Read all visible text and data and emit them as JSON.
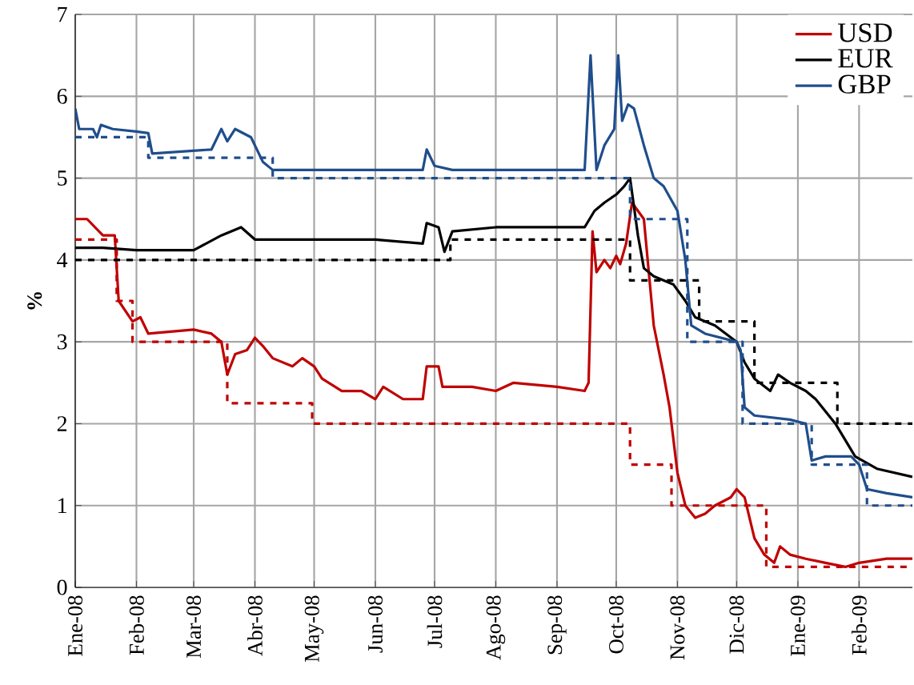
{
  "chart_data": {
    "type": "line",
    "ylabel": "%",
    "ylim": [
      0,
      7
    ],
    "yticks": [
      0,
      1,
      2,
      3,
      4,
      5,
      6,
      7
    ],
    "xlim": [
      "2008-01-01",
      "2009-02-28"
    ],
    "xticks": [
      {
        "value": "2008-01-01",
        "label": "Ene-08"
      },
      {
        "value": "2008-02-01",
        "label": "Feb-08"
      },
      {
        "value": "2008-03-01",
        "label": "Mar-08"
      },
      {
        "value": "2008-04-01",
        "label": "Abr-08"
      },
      {
        "value": "2008-05-01",
        "label": "May-08"
      },
      {
        "value": "2008-06-01",
        "label": "Jun-08"
      },
      {
        "value": "2008-07-01",
        "label": "Jul-08"
      },
      {
        "value": "2008-08-01",
        "label": "Ago-08"
      },
      {
        "value": "2008-09-01",
        "label": "Sep-08"
      },
      {
        "value": "2008-10-01",
        "label": "Oct-08"
      },
      {
        "value": "2008-11-01",
        "label": "Nov-08"
      },
      {
        "value": "2008-12-01",
        "label": "Dic-08"
      },
      {
        "value": "2009-01-01",
        "label": "Ene-09"
      },
      {
        "value": "2009-02-01",
        "label": "Feb-09"
      }
    ],
    "grid": true,
    "legend": "top right",
    "series": [
      {
        "name": "USD",
        "color": "#c00000",
        "line_style": "solid",
        "x": [
          "2008-01-01",
          "2008-01-07",
          "2008-01-15",
          "2008-01-21",
          "2008-01-23",
          "2008-01-30",
          "2008-02-03",
          "2008-02-07",
          "2008-03-01",
          "2008-03-10",
          "2008-03-15",
          "2008-03-18",
          "2008-03-22",
          "2008-03-28",
          "2008-04-01",
          "2008-04-05",
          "2008-04-10",
          "2008-04-20",
          "2008-04-25",
          "2008-05-01",
          "2008-05-05",
          "2008-05-15",
          "2008-05-25",
          "2008-06-01",
          "2008-06-05",
          "2008-06-15",
          "2008-06-25",
          "2008-06-27",
          "2008-07-03",
          "2008-07-05",
          "2008-07-20",
          "2008-08-01",
          "2008-08-10",
          "2008-09-01",
          "2008-09-15",
          "2008-09-17",
          "2008-09-19",
          "2008-09-21",
          "2008-09-25",
          "2008-09-28",
          "2008-10-01",
          "2008-10-03",
          "2008-10-06",
          "2008-10-09",
          "2008-10-12",
          "2008-10-15",
          "2008-10-20",
          "2008-10-25",
          "2008-10-28",
          "2008-11-01",
          "2008-11-05",
          "2008-11-10",
          "2008-11-15",
          "2008-11-20",
          "2008-11-28",
          "2008-12-01",
          "2008-12-05",
          "2008-12-10",
          "2008-12-15",
          "2008-12-20",
          "2008-12-23",
          "2008-12-28",
          "2009-01-05",
          "2009-01-15",
          "2009-01-25",
          "2009-02-01",
          "2009-02-15",
          "2009-02-28"
        ],
        "values": [
          4.5,
          4.5,
          4.3,
          4.3,
          3.5,
          3.25,
          3.3,
          3.1,
          3.15,
          3.1,
          3.0,
          2.6,
          2.85,
          2.9,
          3.05,
          2.95,
          2.8,
          2.7,
          2.8,
          2.7,
          2.55,
          2.4,
          2.4,
          2.3,
          2.45,
          2.3,
          2.3,
          2.7,
          2.7,
          2.45,
          2.45,
          2.4,
          2.5,
          2.45,
          2.4,
          2.5,
          4.35,
          3.85,
          4.0,
          3.9,
          4.05,
          3.95,
          4.2,
          4.7,
          4.6,
          4.5,
          3.2,
          2.6,
          2.2,
          1.4,
          1.0,
          0.85,
          0.9,
          1.0,
          1.1,
          1.2,
          1.1,
          0.6,
          0.4,
          0.3,
          0.5,
          0.4,
          0.35,
          0.3,
          0.25,
          0.3,
          0.35,
          0.35
        ]
      },
      {
        "name": "EUR",
        "color": "#000000",
        "line_style": "solid",
        "x": [
          "2008-01-01",
          "2008-01-15",
          "2008-02-01",
          "2008-03-01",
          "2008-03-15",
          "2008-03-25",
          "2008-04-01",
          "2008-05-01",
          "2008-06-01",
          "2008-06-25",
          "2008-06-27",
          "2008-07-03",
          "2008-07-06",
          "2008-07-10",
          "2008-08-01",
          "2008-09-01",
          "2008-09-15",
          "2008-09-20",
          "2008-09-25",
          "2008-10-01",
          "2008-10-05",
          "2008-10-08",
          "2008-10-12",
          "2008-10-15",
          "2008-10-20",
          "2008-10-30",
          "2008-11-05",
          "2008-11-10",
          "2008-11-20",
          "2008-12-01",
          "2008-12-05",
          "2008-12-10",
          "2008-12-18",
          "2008-12-22",
          "2008-12-28",
          "2009-01-05",
          "2009-01-10",
          "2009-01-20",
          "2009-01-30",
          "2009-02-10",
          "2009-02-28"
        ],
        "values": [
          4.15,
          4.15,
          4.12,
          4.12,
          4.3,
          4.4,
          4.25,
          4.25,
          4.25,
          4.2,
          4.45,
          4.4,
          4.1,
          4.35,
          4.4,
          4.4,
          4.4,
          4.6,
          4.7,
          4.8,
          4.9,
          5.0,
          4.3,
          3.9,
          3.8,
          3.7,
          3.5,
          3.3,
          3.2,
          3.0,
          2.75,
          2.55,
          2.4,
          2.6,
          2.5,
          2.4,
          2.3,
          2.0,
          1.6,
          1.45,
          1.35
        ]
      },
      {
        "name": "GBP",
        "color": "#1f4e8c",
        "line_style": "solid",
        "x": [
          "2008-01-01",
          "2008-01-03",
          "2008-01-10",
          "2008-01-12",
          "2008-01-14",
          "2008-01-20",
          "2008-02-01",
          "2008-02-07",
          "2008-02-09",
          "2008-03-10",
          "2008-03-15",
          "2008-03-18",
          "2008-03-22",
          "2008-03-30",
          "2008-04-05",
          "2008-04-10",
          "2008-05-01",
          "2008-06-25",
          "2008-06-27",
          "2008-07-01",
          "2008-07-10",
          "2008-08-01",
          "2008-09-01",
          "2008-09-15",
          "2008-09-18",
          "2008-09-21",
          "2008-09-25",
          "2008-09-30",
          "2008-10-02",
          "2008-10-04",
          "2008-10-07",
          "2008-10-10",
          "2008-10-15",
          "2008-10-20",
          "2008-10-25",
          "2008-11-01",
          "2008-11-05",
          "2008-11-08",
          "2008-11-15",
          "2008-12-01",
          "2008-12-03",
          "2008-12-05",
          "2008-12-10",
          "2008-12-28",
          "2009-01-05",
          "2009-01-08",
          "2009-01-15",
          "2009-01-28",
          "2009-02-01",
          "2009-02-05",
          "2009-02-15",
          "2009-02-28"
        ],
        "values": [
          5.85,
          5.6,
          5.6,
          5.5,
          5.65,
          5.6,
          5.57,
          5.55,
          5.3,
          5.35,
          5.6,
          5.45,
          5.6,
          5.5,
          5.2,
          5.1,
          5.1,
          5.1,
          5.35,
          5.15,
          5.1,
          5.1,
          5.1,
          5.1,
          6.5,
          5.1,
          5.4,
          5.6,
          6.5,
          5.7,
          5.9,
          5.85,
          5.4,
          5.0,
          4.9,
          4.6,
          4.0,
          3.2,
          3.1,
          3.0,
          2.9,
          2.2,
          2.1,
          2.05,
          2.0,
          1.55,
          1.6,
          1.6,
          1.5,
          1.2,
          1.15,
          1.1
        ]
      },
      {
        "color": "#c00000",
        "type": "step",
        "line_style": "dashed",
        "x": [
          "2008-01-01",
          "2008-01-22",
          "2008-01-30",
          "2008-03-18",
          "2008-04-30",
          "2008-10-08",
          "2008-10-29",
          "2008-12-16",
          "2009-02-28"
        ],
        "values": [
          4.25,
          3.5,
          3.0,
          2.25,
          2.0,
          1.5,
          1.0,
          0.25,
          0.25
        ]
      },
      {
        "color": "#000000",
        "type": "step",
        "line_style": "dashed",
        "x": [
          "2008-01-01",
          "2008-07-09",
          "2008-10-08",
          "2008-11-12",
          "2008-12-10",
          "2009-01-21",
          "2009-02-28"
        ],
        "values": [
          4.0,
          4.25,
          3.75,
          3.25,
          2.5,
          2.0,
          2.0
        ]
      },
      {
        "color": "#1f4e8c",
        "type": "step",
        "line_style": "dashed",
        "x": [
          "2008-01-01",
          "2008-02-07",
          "2008-04-10",
          "2008-10-08",
          "2008-11-06",
          "2008-12-04",
          "2009-01-08",
          "2009-02-05",
          "2009-02-28"
        ],
        "values": [
          5.5,
          5.25,
          5.0,
          4.5,
          3.0,
          2.0,
          1.5,
          1.0,
          1.0
        ]
      }
    ]
  }
}
